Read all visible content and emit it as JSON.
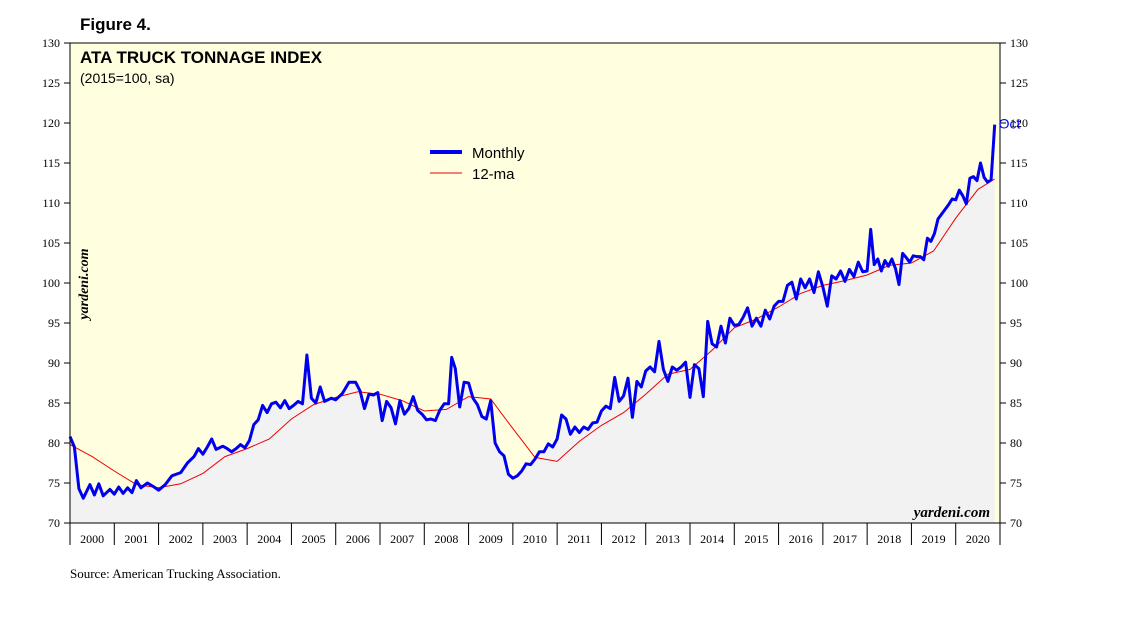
{
  "figure_label": "Figure 4.",
  "source": "Source: American Trucking Association.",
  "watermark": "yardeni.com",
  "colors": {
    "plot_background": "#ffffe0",
    "area_fill": "#f2f2f2",
    "monthly": "#0000ee",
    "ma": "#ee0000",
    "axis": "#000000"
  },
  "chart_data": {
    "type": "line",
    "title": "ATA TRUCK TONNAGE INDEX",
    "subtitle": "(2015=100, sa)",
    "ylim": [
      70,
      130
    ],
    "y_ticks": [
      70,
      75,
      80,
      85,
      90,
      95,
      100,
      105,
      110,
      115,
      120,
      125,
      130
    ],
    "y_tick_labels": [
      "70",
      "75",
      "80",
      "85",
      "90",
      "95",
      "100",
      "105",
      "110",
      "115",
      "120",
      "125",
      "130"
    ],
    "xlim": [
      2000,
      2021
    ],
    "x_tick_labels": [
      "2000",
      "2001",
      "2002",
      "2003",
      "2004",
      "2005",
      "2006",
      "2007",
      "2008",
      "2009",
      "2010",
      "2011",
      "2012",
      "2013",
      "2014",
      "2015",
      "2016",
      "2017",
      "2018",
      "2019",
      "2020"
    ],
    "legend_position": "top-center",
    "last_point_label": "Oct",
    "grid": false,
    "series": [
      {
        "name": "Monthly",
        "color": "#0000ee",
        "points": [
          [
            2000.0,
            80.8
          ],
          [
            2000.1,
            79.5
          ],
          [
            2000.2,
            74.3
          ],
          [
            2000.3,
            73.1
          ],
          [
            2000.45,
            74.8
          ],
          [
            2000.55,
            73.5
          ],
          [
            2000.65,
            74.9
          ],
          [
            2000.75,
            73.4
          ],
          [
            2000.9,
            74.2
          ],
          [
            2001.0,
            73.6
          ],
          [
            2001.1,
            74.5
          ],
          [
            2001.2,
            73.7
          ],
          [
            2001.3,
            74.4
          ],
          [
            2001.4,
            73.8
          ],
          [
            2001.5,
            75.3
          ],
          [
            2001.6,
            74.4
          ],
          [
            2001.75,
            75.0
          ],
          [
            2001.9,
            74.5
          ],
          [
            2002.0,
            74.1
          ],
          [
            2002.15,
            74.8
          ],
          [
            2002.3,
            75.9
          ],
          [
            2002.5,
            76.3
          ],
          [
            2002.65,
            77.5
          ],
          [
            2002.8,
            78.3
          ],
          [
            2002.9,
            79.3
          ],
          [
            2003.0,
            78.6
          ],
          [
            2003.1,
            79.5
          ],
          [
            2003.2,
            80.5
          ],
          [
            2003.3,
            79.2
          ],
          [
            2003.45,
            79.6
          ],
          [
            2003.55,
            79.3
          ],
          [
            2003.65,
            78.9
          ],
          [
            2003.75,
            79.3
          ],
          [
            2003.85,
            79.8
          ],
          [
            2003.95,
            79.4
          ],
          [
            2004.05,
            80.3
          ],
          [
            2004.15,
            82.3
          ],
          [
            2004.25,
            82.9
          ],
          [
            2004.35,
            84.7
          ],
          [
            2004.45,
            83.8
          ],
          [
            2004.55,
            84.9
          ],
          [
            2004.65,
            85.1
          ],
          [
            2004.75,
            84.4
          ],
          [
            2004.85,
            85.3
          ],
          [
            2004.95,
            84.3
          ],
          [
            2005.05,
            84.7
          ],
          [
            2005.15,
            85.2
          ],
          [
            2005.25,
            84.9
          ],
          [
            2005.35,
            91.0
          ],
          [
            2005.45,
            85.6
          ],
          [
            2005.55,
            85.0
          ],
          [
            2005.65,
            87.0
          ],
          [
            2005.75,
            85.2
          ],
          [
            2005.9,
            85.6
          ],
          [
            2006.0,
            85.4
          ],
          [
            2006.15,
            86.2
          ],
          [
            2006.3,
            87.6
          ],
          [
            2006.45,
            87.6
          ],
          [
            2006.55,
            86.5
          ],
          [
            2006.65,
            84.3
          ],
          [
            2006.75,
            86.1
          ],
          [
            2006.85,
            86.0
          ],
          [
            2006.95,
            86.3
          ],
          [
            2007.05,
            82.8
          ],
          [
            2007.15,
            85.2
          ],
          [
            2007.25,
            84.4
          ],
          [
            2007.35,
            82.4
          ],
          [
            2007.45,
            85.3
          ],
          [
            2007.55,
            83.6
          ],
          [
            2007.65,
            84.3
          ],
          [
            2007.75,
            85.8
          ],
          [
            2007.85,
            84.1
          ],
          [
            2007.95,
            83.6
          ],
          [
            2008.05,
            82.9
          ],
          [
            2008.15,
            83.0
          ],
          [
            2008.25,
            82.8
          ],
          [
            2008.35,
            84.1
          ],
          [
            2008.45,
            84.9
          ],
          [
            2008.55,
            84.9
          ],
          [
            2008.62,
            90.7
          ],
          [
            2008.7,
            89.3
          ],
          [
            2008.8,
            84.5
          ],
          [
            2008.9,
            87.6
          ],
          [
            2009.0,
            87.5
          ],
          [
            2009.1,
            85.6
          ],
          [
            2009.2,
            84.8
          ],
          [
            2009.3,
            83.3
          ],
          [
            2009.4,
            83.0
          ],
          [
            2009.5,
            85.3
          ],
          [
            2009.6,
            80.0
          ],
          [
            2009.7,
            78.9
          ],
          [
            2009.8,
            78.4
          ],
          [
            2009.9,
            76.1
          ],
          [
            2010.0,
            75.6
          ],
          [
            2010.1,
            75.9
          ],
          [
            2010.2,
            76.5
          ],
          [
            2010.3,
            77.4
          ],
          [
            2010.4,
            77.3
          ],
          [
            2010.5,
            78.0
          ],
          [
            2010.6,
            78.9
          ],
          [
            2010.7,
            78.9
          ],
          [
            2010.8,
            79.9
          ],
          [
            2010.9,
            79.5
          ],
          [
            2011.0,
            80.5
          ],
          [
            2011.1,
            83.5
          ],
          [
            2011.2,
            83.0
          ],
          [
            2011.3,
            81.1
          ],
          [
            2011.4,
            82.0
          ],
          [
            2011.5,
            81.3
          ],
          [
            2011.6,
            82.0
          ],
          [
            2011.7,
            81.7
          ],
          [
            2011.8,
            82.5
          ],
          [
            2011.9,
            82.6
          ],
          [
            2012.0,
            84.0
          ],
          [
            2012.1,
            84.6
          ],
          [
            2012.2,
            84.3
          ],
          [
            2012.3,
            88.2
          ],
          [
            2012.4,
            85.2
          ],
          [
            2012.5,
            85.9
          ],
          [
            2012.6,
            88.1
          ],
          [
            2012.7,
            83.2
          ],
          [
            2012.8,
            87.7
          ],
          [
            2012.9,
            87.0
          ],
          [
            2013.0,
            89.0
          ],
          [
            2013.1,
            89.5
          ],
          [
            2013.2,
            88.9
          ],
          [
            2013.3,
            92.7
          ],
          [
            2013.4,
            89.2
          ],
          [
            2013.5,
            87.7
          ],
          [
            2013.6,
            89.5
          ],
          [
            2013.7,
            89.1
          ],
          [
            2013.8,
            89.5
          ],
          [
            2013.9,
            90.1
          ],
          [
            2014.0,
            85.7
          ],
          [
            2014.1,
            89.8
          ],
          [
            2014.2,
            89.3
          ],
          [
            2014.3,
            85.8
          ],
          [
            2014.4,
            95.2
          ],
          [
            2014.5,
            92.4
          ],
          [
            2014.6,
            92.0
          ],
          [
            2014.7,
            94.6
          ],
          [
            2014.8,
            92.5
          ],
          [
            2014.9,
            95.6
          ],
          [
            2015.0,
            94.7
          ],
          [
            2015.1,
            94.8
          ],
          [
            2015.2,
            95.7
          ],
          [
            2015.3,
            96.9
          ],
          [
            2015.4,
            94.6
          ],
          [
            2015.5,
            95.6
          ],
          [
            2015.6,
            94.6
          ],
          [
            2015.7,
            96.6
          ],
          [
            2015.8,
            95.5
          ],
          [
            2015.9,
            97.1
          ],
          [
            2016.0,
            97.7
          ],
          [
            2016.1,
            97.7
          ],
          [
            2016.2,
            99.7
          ],
          [
            2016.3,
            100.1
          ],
          [
            2016.4,
            98.0
          ],
          [
            2016.5,
            100.5
          ],
          [
            2016.6,
            99.4
          ],
          [
            2016.7,
            100.5
          ],
          [
            2016.8,
            98.8
          ],
          [
            2016.9,
            101.4
          ],
          [
            2017.0,
            99.5
          ],
          [
            2017.1,
            97.1
          ],
          [
            2017.2,
            100.9
          ],
          [
            2017.3,
            100.5
          ],
          [
            2017.4,
            101.5
          ],
          [
            2017.5,
            100.2
          ],
          [
            2017.6,
            101.7
          ],
          [
            2017.7,
            100.8
          ],
          [
            2017.8,
            102.6
          ],
          [
            2017.9,
            101.4
          ],
          [
            2018.0,
            101.5
          ],
          [
            2018.08,
            106.7
          ],
          [
            2018.16,
            102.3
          ],
          [
            2018.24,
            103.0
          ],
          [
            2018.32,
            101.5
          ],
          [
            2018.4,
            102.8
          ],
          [
            2018.48,
            102.1
          ],
          [
            2018.56,
            103.0
          ],
          [
            2018.64,
            101.8
          ],
          [
            2018.72,
            99.8
          ],
          [
            2018.8,
            103.7
          ],
          [
            2018.88,
            103.2
          ],
          [
            2018.96,
            102.6
          ],
          [
            2019.04,
            103.4
          ],
          [
            2019.12,
            103.3
          ],
          [
            2019.2,
            103.3
          ],
          [
            2019.28,
            102.9
          ],
          [
            2019.36,
            105.6
          ],
          [
            2019.44,
            105.2
          ],
          [
            2019.52,
            106.2
          ],
          [
            2019.6,
            108.0
          ],
          [
            2019.68,
            108.6
          ],
          [
            2019.76,
            109.2
          ],
          [
            2019.84,
            109.8
          ],
          [
            2019.92,
            110.5
          ],
          [
            2020.0,
            110.4
          ],
          [
            2020.08,
            111.6
          ],
          [
            2020.16,
            110.9
          ],
          [
            2020.24,
            109.9
          ],
          [
            2020.32,
            113.1
          ],
          [
            2020.4,
            113.3
          ],
          [
            2020.48,
            112.8
          ],
          [
            2020.56,
            115.0
          ],
          [
            2020.64,
            113.2
          ],
          [
            2020.72,
            112.6
          ],
          [
            2020.8,
            112.9
          ],
          [
            2020.88,
            119.8
          ]
        ]
      },
      {
        "name": "12-ma",
        "color": "#ee0000",
        "points": [
          [
            2000.0,
            79.8
          ],
          [
            2000.5,
            78.3
          ],
          [
            2001.0,
            76.5
          ],
          [
            2001.5,
            74.8
          ],
          [
            2002.0,
            74.4
          ],
          [
            2002.5,
            74.9
          ],
          [
            2003.0,
            76.2
          ],
          [
            2003.5,
            78.3
          ],
          [
            2004.0,
            79.3
          ],
          [
            2004.5,
            80.5
          ],
          [
            2005.0,
            83.0
          ],
          [
            2005.5,
            84.8
          ],
          [
            2006.0,
            85.7
          ],
          [
            2006.5,
            86.4
          ],
          [
            2007.0,
            86.1
          ],
          [
            2007.5,
            85.3
          ],
          [
            2008.0,
            84.0
          ],
          [
            2008.5,
            84.2
          ],
          [
            2009.0,
            85.8
          ],
          [
            2009.5,
            85.5
          ],
          [
            2010.0,
            81.8
          ],
          [
            2010.5,
            78.2
          ],
          [
            2011.0,
            77.7
          ],
          [
            2011.5,
            80.2
          ],
          [
            2012.0,
            82.2
          ],
          [
            2012.5,
            83.8
          ],
          [
            2013.0,
            86.1
          ],
          [
            2013.5,
            88.6
          ],
          [
            2014.0,
            89.2
          ],
          [
            2014.5,
            91.6
          ],
          [
            2015.0,
            94.4
          ],
          [
            2015.5,
            95.5
          ],
          [
            2016.0,
            97.0
          ],
          [
            2016.5,
            98.7
          ],
          [
            2017.0,
            99.7
          ],
          [
            2017.5,
            100.3
          ],
          [
            2018.0,
            101.0
          ],
          [
            2018.5,
            102.2
          ],
          [
            2019.0,
            102.5
          ],
          [
            2019.5,
            104.0
          ],
          [
            2020.0,
            108.1
          ],
          [
            2020.5,
            111.7
          ],
          [
            2020.88,
            113.0
          ]
        ]
      }
    ]
  }
}
